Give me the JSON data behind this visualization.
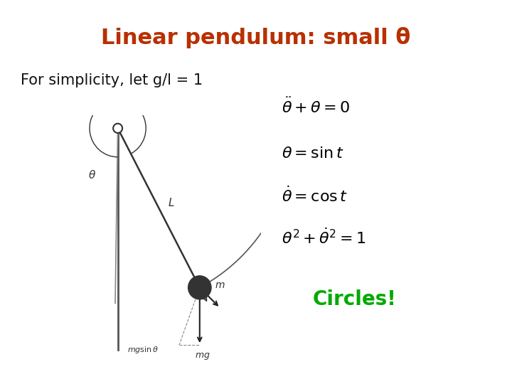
{
  "title": "Linear pendulum: small θ",
  "title_color": "#b83000",
  "title_fontsize": 22,
  "title_fontweight": "bold",
  "subtitle": "For simplicity, let g/l = 1",
  "subtitle_fontsize": 15,
  "subtitle_color": "#111111",
  "eq1": "$\\ddot{\\theta}+\\theta=0$",
  "eq2": "$\\theta=\\sin t$",
  "eq3": "$\\dot{\\theta}=\\cos t$",
  "eq4": "$\\theta^2+\\dot{\\theta}^2=1$",
  "circles_text": "Circles!",
  "circles_color": "#00aa00",
  "circles_fontsize": 20,
  "circles_fontweight": "bold",
  "eq_fontsize": 16,
  "eq_color": "#000000",
  "background_color": "#ffffff"
}
